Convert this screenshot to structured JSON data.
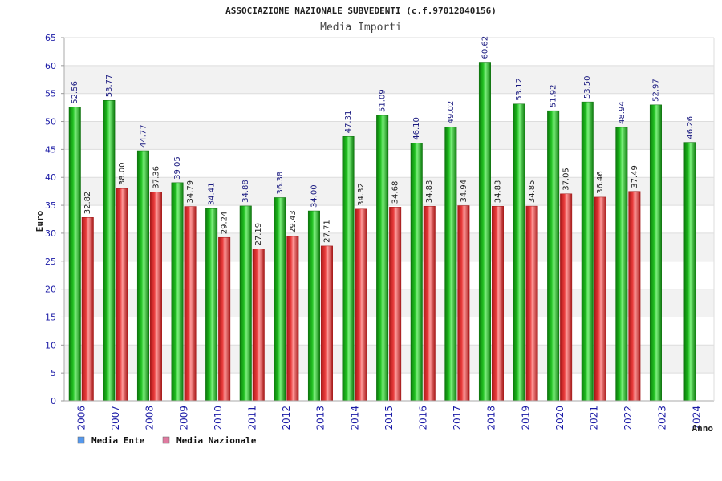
{
  "chart_data": {
    "type": "bar",
    "title": "ASSOCIAZIONE NAZIONALE SUBVEDENTI (c.f.97012040156)",
    "subtitle": "Media Importi",
    "ylabel": "Euro",
    "xlabel": "Anno",
    "ylim": [
      0,
      65
    ],
    "yticks": [
      0,
      5,
      10,
      15,
      20,
      25,
      30,
      35,
      40,
      45,
      50,
      55,
      60,
      65
    ],
    "grid": true,
    "legend_position": "bottom-left",
    "categories": [
      "2006",
      "2007",
      "2008",
      "2009",
      "2010",
      "2011",
      "2012",
      "2013",
      "2014",
      "2015",
      "2016",
      "2017",
      "2018",
      "2019",
      "2020",
      "2021",
      "2022",
      "2023",
      "2024"
    ],
    "series": [
      {
        "name": "Media Ente",
        "color": "#22bb22",
        "legend_color": "#5599ee",
        "values": [
          52.56,
          53.77,
          44.77,
          39.05,
          34.41,
          34.88,
          36.38,
          34.0,
          47.31,
          51.09,
          46.1,
          49.02,
          60.62,
          53.12,
          51.92,
          53.5,
          48.94,
          52.97,
          46.26
        ],
        "labels": [
          "52.56",
          "53.77",
          "44.77",
          "39.05",
          "34.41",
          "34.88",
          "36.38",
          "34.00",
          "47.31",
          "51.09",
          "46.10",
          "49.02",
          "60.62",
          "53.12",
          "51.92",
          "53.50",
          "48.94",
          "52.97",
          "46.26"
        ]
      },
      {
        "name": "Media Nazionale",
        "color": "#e83a3a",
        "legend_color": "#e07aa0",
        "values": [
          32.82,
          38.0,
          37.36,
          34.79,
          29.24,
          27.19,
          29.43,
          27.71,
          34.32,
          34.68,
          34.83,
          34.94,
          34.83,
          34.85,
          37.05,
          36.46,
          37.49,
          null,
          null
        ],
        "labels": [
          "32.82",
          "38.00",
          "37.36",
          "34.79",
          "29.24",
          "27.19",
          "29.43",
          "27.71",
          "34.32",
          "34.68",
          "34.83",
          "34.94",
          "34.83",
          "34.85",
          "37.05",
          "36.46",
          "37.49",
          null,
          null
        ]
      }
    ]
  }
}
